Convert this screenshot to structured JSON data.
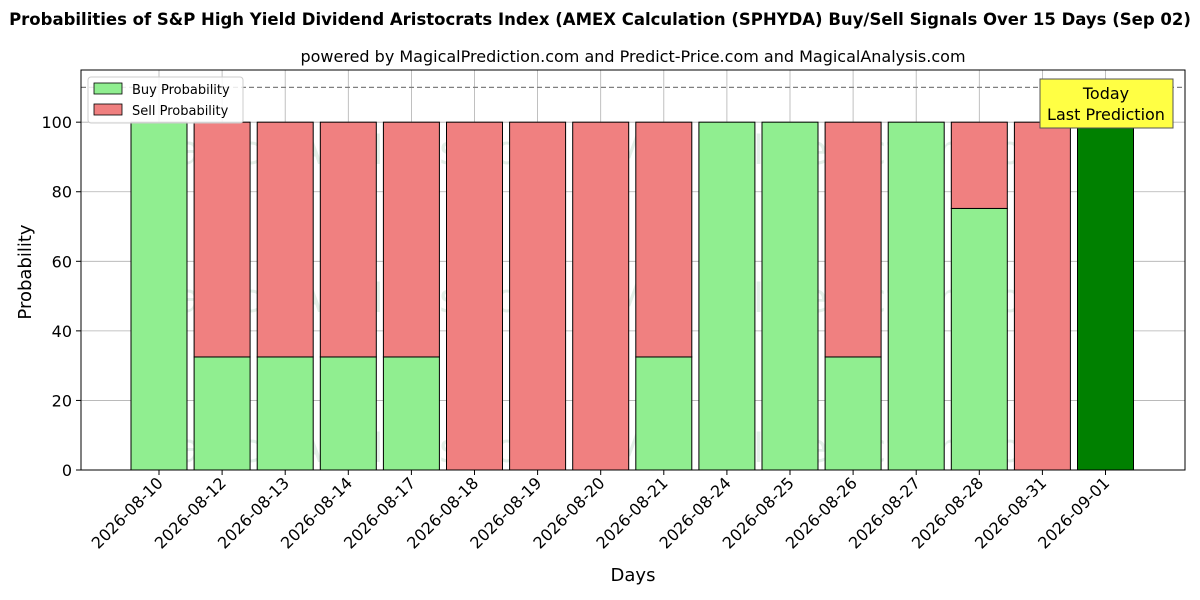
{
  "chart_data": {
    "type": "bar",
    "stacked": true,
    "title": "Probabilities of S&P High Yield Dividend Aristocrats Index (AMEX Calculation (SPHYDA) Buy/Sell Signals Over 15 Days (Sep 02)",
    "subtitle": "powered by MagicalPrediction.com and Predict-Price.com and MagicalAnalysis.com",
    "xlabel": "Days",
    "ylabel": "Probability",
    "ylim": [
      0,
      115
    ],
    "yticks": [
      0,
      20,
      40,
      60,
      80,
      100
    ],
    "grid": true,
    "legend_position": "top-left",
    "reference_line": 110,
    "categories": [
      "2026-08-10",
      "2026-08-12",
      "2026-08-13",
      "2026-08-14",
      "2026-08-17",
      "2026-08-18",
      "2026-08-19",
      "2026-08-20",
      "2026-08-21",
      "2026-08-24",
      "2026-08-25",
      "2026-08-26",
      "2026-08-27",
      "2026-08-28",
      "2026-08-31",
      "2026-09-01"
    ],
    "series": [
      {
        "name": "Buy Probability",
        "color": "#90ee90",
        "values": [
          100,
          32.5,
          32.5,
          32.5,
          32.5,
          0,
          0,
          0,
          32.5,
          100,
          100,
          32.5,
          100,
          75.2,
          0,
          100
        ]
      },
      {
        "name": "Sell Probability",
        "color": "#f08080",
        "values": [
          0,
          67.5,
          67.5,
          67.5,
          67.5,
          100,
          100,
          100,
          67.5,
          0,
          0,
          67.5,
          0,
          24.8,
          100,
          0
        ]
      }
    ],
    "highlight": {
      "index": 15,
      "color": "#008000"
    },
    "annotation": {
      "lines": [
        "Today",
        "Last Prediction"
      ],
      "background": "#ffff44"
    },
    "watermarks": [
      "MagicalAnalysis.com",
      "MagicalPrediction.com"
    ]
  }
}
